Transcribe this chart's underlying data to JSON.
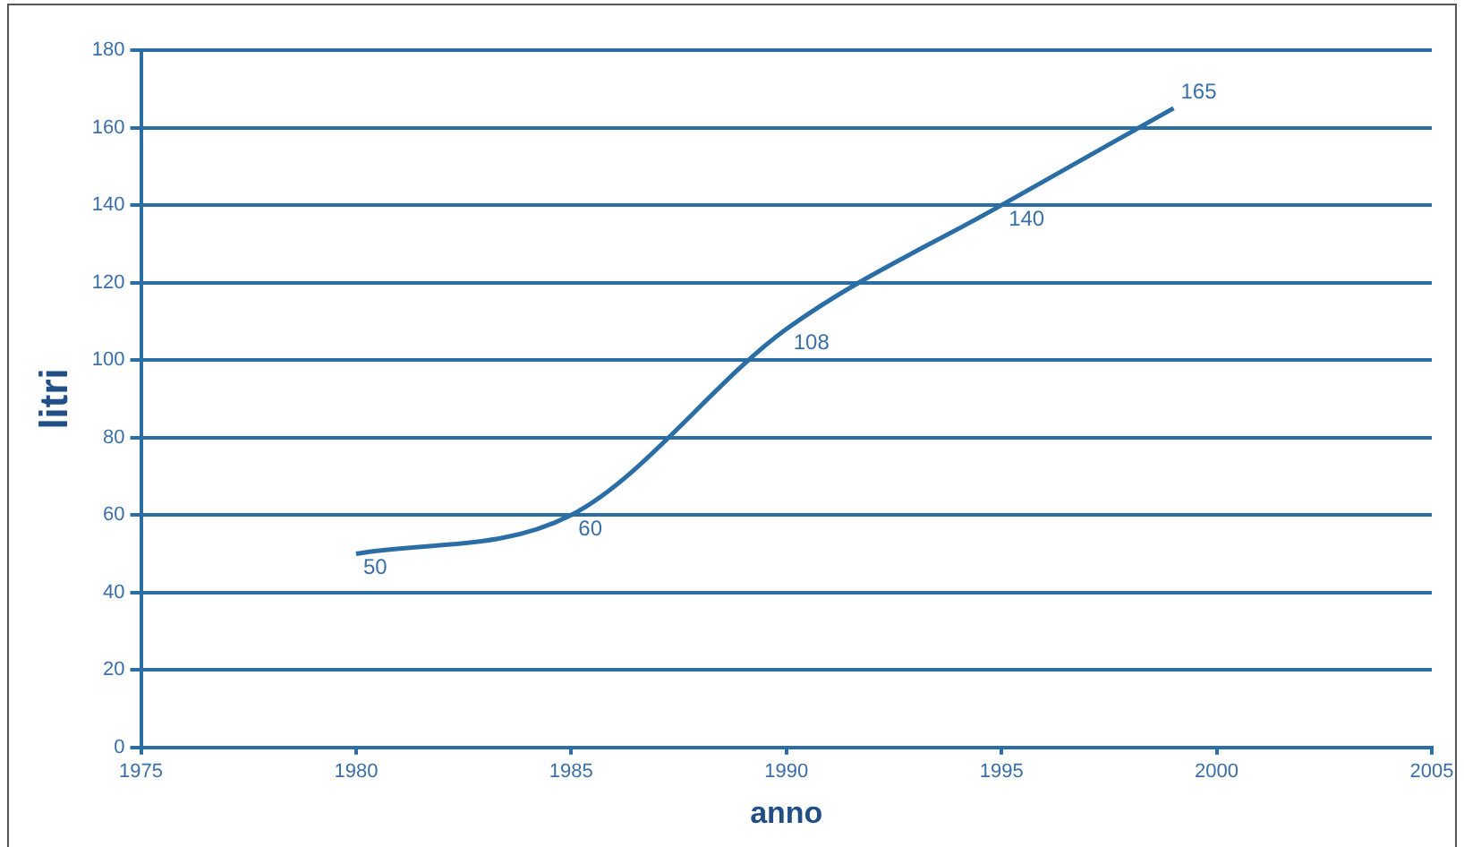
{
  "chart_data": {
    "type": "line",
    "xlabel": "anno",
    "ylabel": "litri",
    "x": [
      1980,
      1985,
      1990,
      1995,
      1999
    ],
    "series": [
      {
        "color": "#2b6ea6",
        "values": [
          50,
          60,
          108,
          140,
          165
        ]
      }
    ],
    "xlim": [
      1975,
      2005
    ],
    "xticks": [
      1975,
      1980,
      1985,
      1990,
      1995,
      2000,
      2005
    ],
    "ylim": [
      0,
      180
    ],
    "yticks": [
      0,
      20,
      40,
      60,
      80,
      100,
      120,
      140,
      160,
      180
    ],
    "grid": "y",
    "legend": false,
    "marker": "none",
    "line_style": "solid",
    "data_labels": true
  }
}
